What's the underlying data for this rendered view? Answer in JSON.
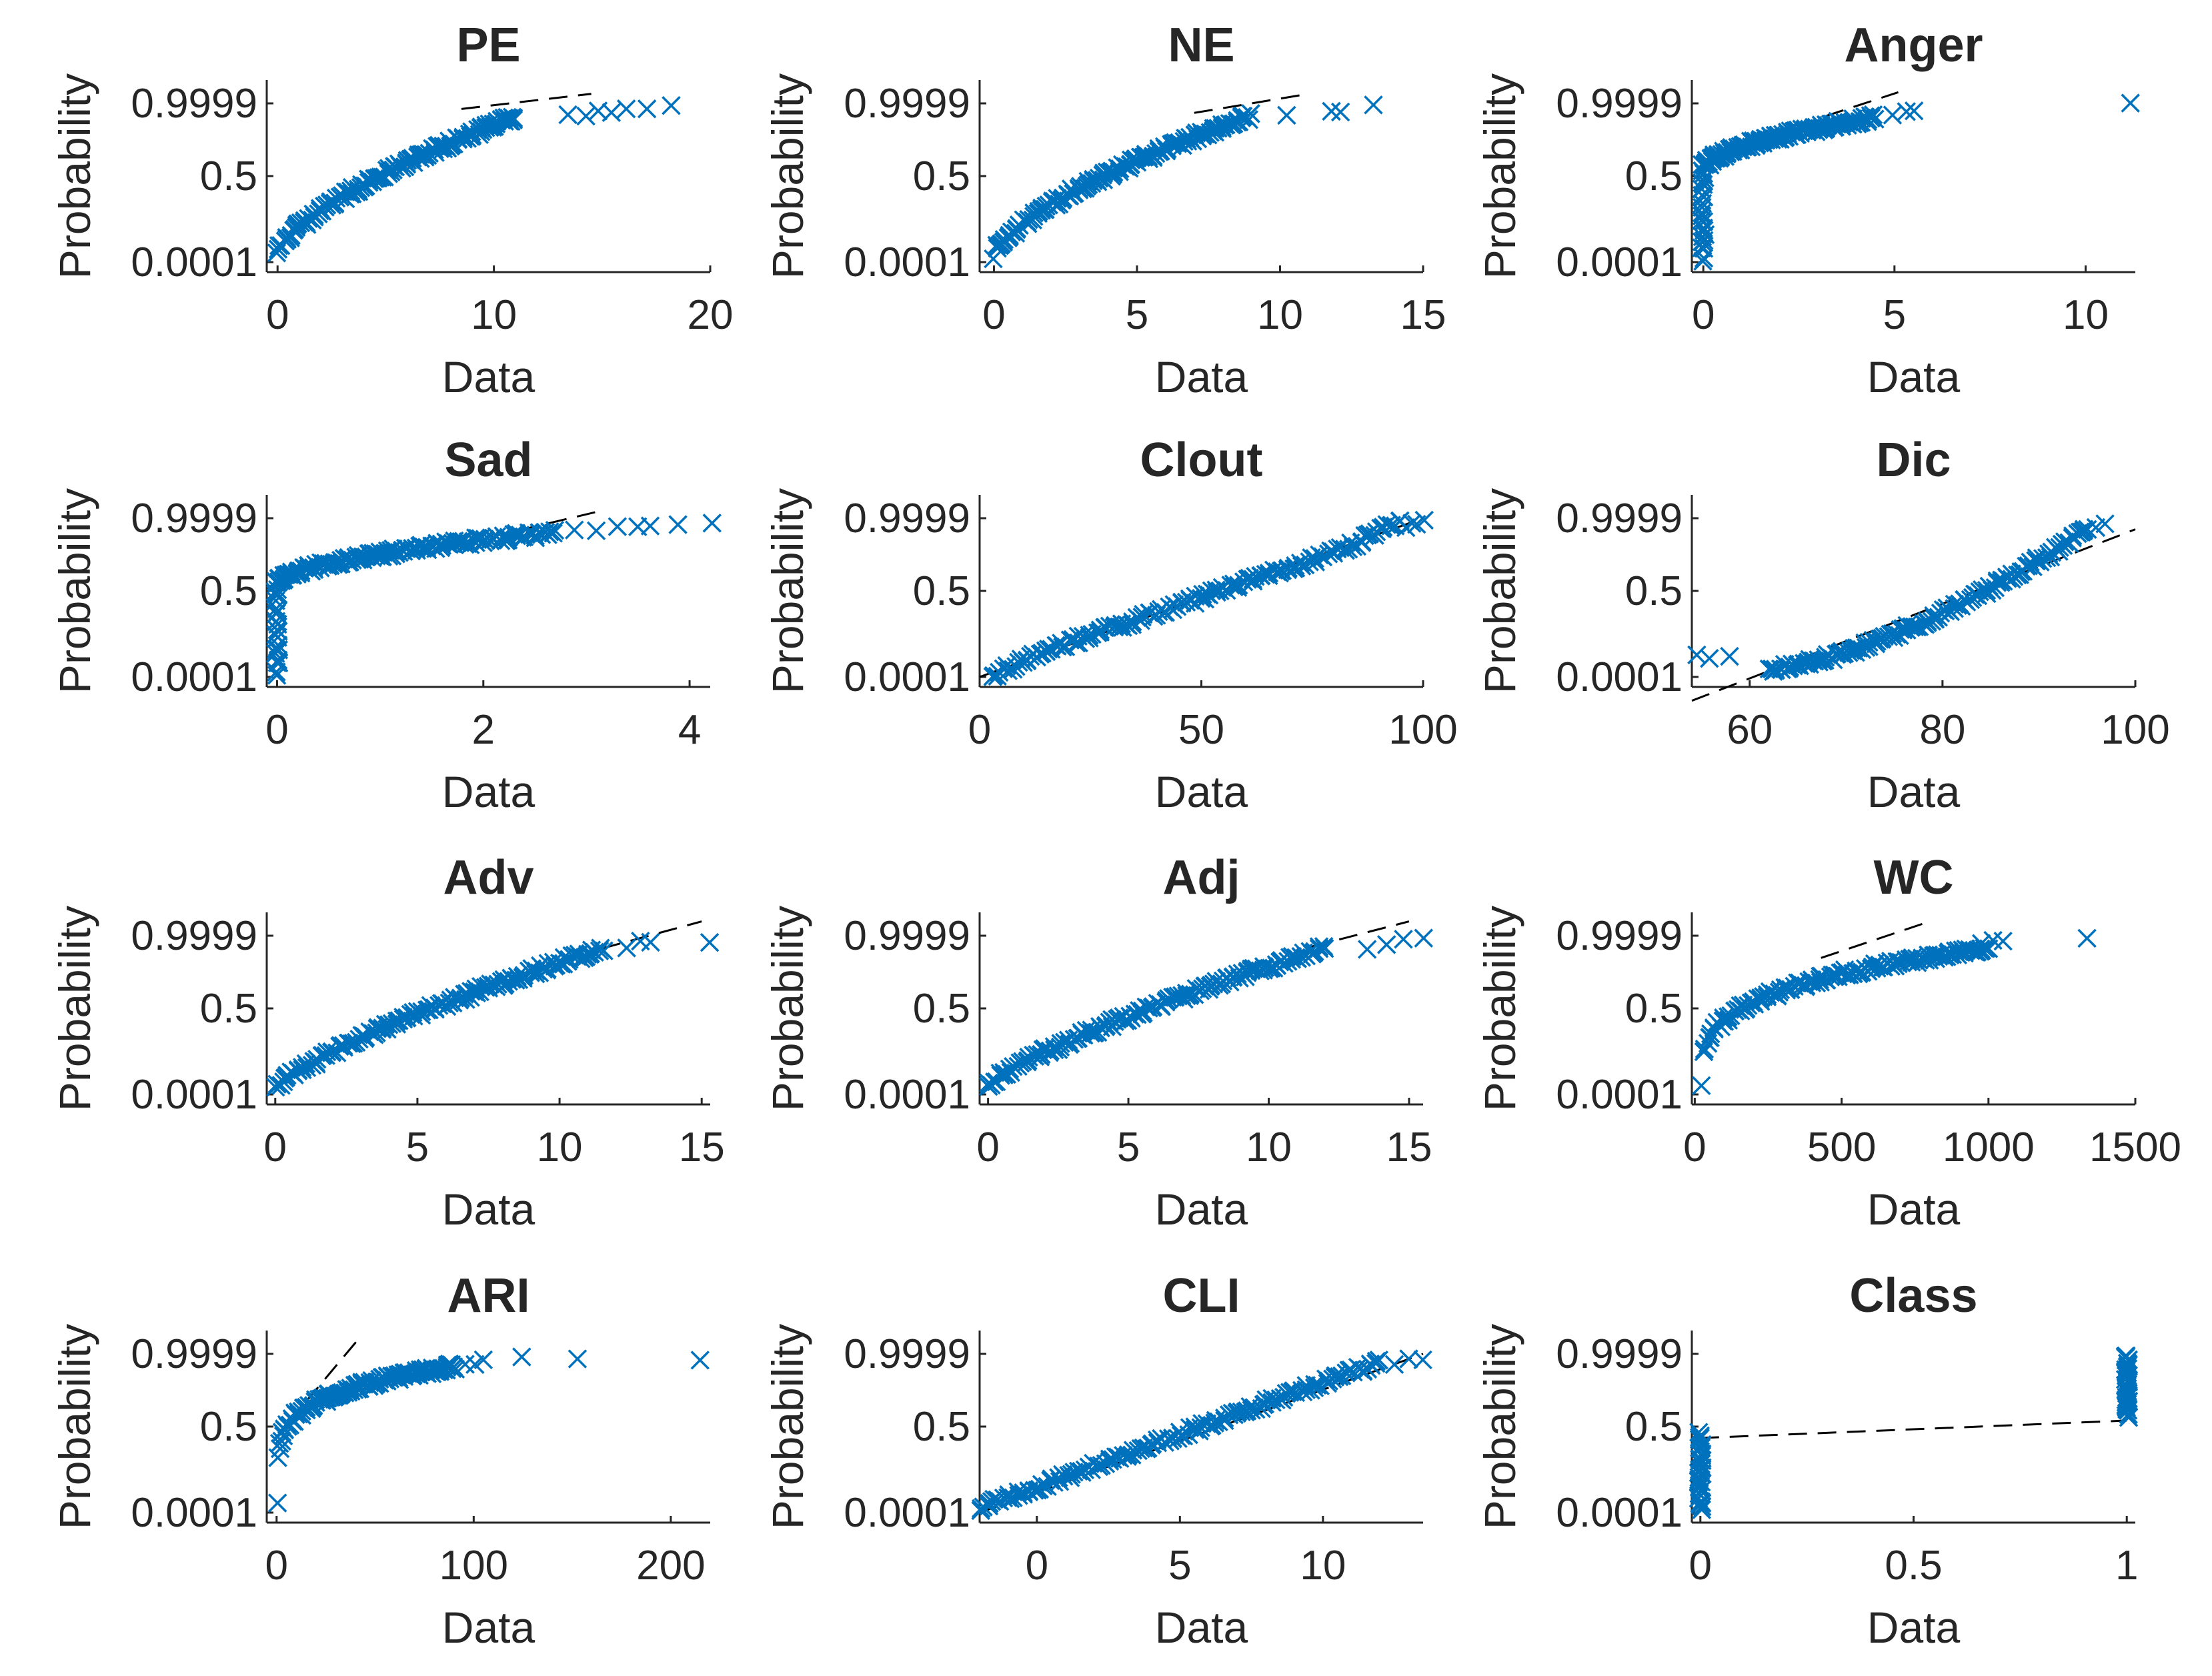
{
  "style": {
    "marker_color": "#0072BD",
    "ref_line_color": "#000000",
    "axis_color": "#262626"
  },
  "chart_data": [
    {
      "type": "scatter",
      "title": "PE",
      "xlabel": "Data",
      "ylabel": "Probability",
      "xlim": [
        -0.5,
        20
      ],
      "xticks": [
        0,
        10,
        20
      ],
      "yticks": [
        0.0001,
        0.5,
        0.9999
      ],
      "ytick_labels": [
        "0.0001",
        "0.5",
        "0.9999"
      ],
      "shape": "concave",
      "x_start": 0,
      "bend": 1.5,
      "x_knee": 11,
      "x_end": 18,
      "tail": [
        13.5,
        14.2,
        14.8,
        15.4,
        16.1,
        17.0,
        18.2
      ],
      "outliers": [],
      "ref_line": [
        [
          8.5,
          0.965
        ],
        [
          14.5,
          1.06
        ]
      ]
    },
    {
      "type": "scatter",
      "title": "NE",
      "xlabel": "Data",
      "ylabel": "Probability",
      "xlim": [
        -0.5,
        15
      ],
      "xticks": [
        0,
        5,
        10,
        15
      ],
      "yticks": [
        0.0001,
        0.5,
        0.9999
      ],
      "ytick_labels": [
        "0.0001",
        "0.5",
        "0.9999"
      ],
      "shape": "concave",
      "x_start": 0,
      "bend": 1.5,
      "x_knee": 9,
      "x_end": 13.5,
      "tail": [
        10.2,
        11.8,
        12.1,
        13.2
      ],
      "outliers": [],
      "ref_line": [
        [
          7.0,
          0.94
        ],
        [
          11.0,
          1.06
        ]
      ]
    },
    {
      "type": "scatter",
      "title": "Anger",
      "xlabel": "Data",
      "ylabel": "Probability",
      "xlim": [
        -0.3,
        11.3
      ],
      "xticks": [
        0,
        5,
        10
      ],
      "yticks": [
        0.0001,
        0.5,
        0.9999
      ],
      "ytick_labels": [
        "0.0001",
        "0.5",
        "0.9999"
      ],
      "shape": "jump",
      "x_start": 0,
      "bend": 0.4,
      "x_knee": 4.5,
      "x_end": 5.5,
      "tail": [
        5.0,
        5.3,
        5.5
      ],
      "outliers": [
        [
          11.2,
          0.99
        ]
      ],
      "ref_line": [
        [
          3.2,
          0.92
        ],
        [
          5.1,
          1.07
        ]
      ]
    },
    {
      "type": "scatter",
      "title": "Sad",
      "xlabel": "Data",
      "ylabel": "Probability",
      "xlim": [
        -0.1,
        4.2
      ],
      "xticks": [
        0,
        2,
        4
      ],
      "yticks": [
        0.0001,
        0.5,
        0.9999
      ],
      "ytick_labels": [
        "0.0001",
        "0.5",
        "0.9999"
      ],
      "shape": "jump",
      "x_start": 0,
      "bend": 0.5,
      "x_knee": 2.7,
      "x_end": 4.2,
      "tail": [
        2.9,
        3.1,
        3.3,
        3.5,
        3.6,
        3.9,
        4.2
      ],
      "outliers": [],
      "ref_line": [
        [
          1.8,
          0.84
        ],
        [
          3.1,
          1.04
        ]
      ]
    },
    {
      "type": "scatter",
      "title": "Clout",
      "xlabel": "Data",
      "ylabel": "Probability",
      "xlim": [
        0,
        100
      ],
      "xticks": [
        0,
        50,
        100
      ],
      "yticks": [
        0.0001,
        0.5,
        0.9999
      ],
      "ytick_labels": [
        "0.0001",
        "0.5",
        "0.9999"
      ],
      "shape": "scurve",
      "x_start": 3,
      "bend": 1.2,
      "x_knee": 95,
      "x_end": 100,
      "tail": [
        96,
        97.5,
        98.5,
        100
      ],
      "outliers": [],
      "ref_line": [
        [
          0,
          0.0
        ],
        [
          100,
          1.0
        ]
      ]
    },
    {
      "type": "scatter",
      "title": "Dic",
      "xlabel": "Data",
      "ylabel": "Probability",
      "xlim": [
        54,
        100
      ],
      "xticks": [
        60,
        80,
        100
      ],
      "yticks": [
        0.0001,
        0.5,
        0.9999
      ],
      "ytick_labels": [
        "0.0001",
        "0.5",
        "0.9999"
      ],
      "shape": "convex",
      "x_start": 62,
      "bend": 1.5,
      "x_knee": 95,
      "x_end": 97,
      "tail": [
        96,
        97
      ],
      "outliers": [
        [
          54.5,
          0.12
        ],
        [
          56,
          0.12
        ],
        [
          58,
          0.13
        ]
      ],
      "ref_line": [
        [
          54,
          -0.15
        ],
        [
          100,
          0.93
        ]
      ]
    },
    {
      "type": "scatter",
      "title": "Adv",
      "xlabel": "Data",
      "ylabel": "Probability",
      "xlim": [
        -0.3,
        15.3
      ],
      "xticks": [
        0,
        5,
        10,
        15
      ],
      "yticks": [
        0.0001,
        0.5,
        0.9999
      ],
      "ytick_labels": [
        "0.0001",
        "0.5",
        "0.9999"
      ],
      "shape": "concave",
      "x_start": 0,
      "bend": 1.3,
      "x_knee": 11.5,
      "x_end": 13.3,
      "tail": [
        12.3,
        12.8,
        13.2,
        15.3
      ],
      "outliers": [],
      "ref_line": [
        [
          11.5,
          0.92
        ],
        [
          15.0,
          1.09
        ]
      ]
    },
    {
      "type": "scatter",
      "title": "Adj",
      "xlabel": "Data",
      "ylabel": "Probability",
      "xlim": [
        -0.3,
        15.5
      ],
      "xticks": [
        0,
        5,
        10,
        15
      ],
      "yticks": [
        0.0001,
        0.5,
        0.9999
      ],
      "ytick_labels": [
        "0.0001",
        "0.5",
        "0.9999"
      ],
      "shape": "concave",
      "x_start": 0,
      "bend": 1.3,
      "x_knee": 12,
      "x_end": 15.5,
      "tail": [
        13.5,
        14.2,
        14.8,
        15.5
      ],
      "outliers": [],
      "ref_line": [
        [
          11.5,
          0.93
        ],
        [
          15.0,
          1.09
        ]
      ]
    },
    {
      "type": "scatter",
      "title": "WC",
      "xlabel": "Data",
      "ylabel": "Probability",
      "xlim": [
        -10,
        1500
      ],
      "xticks": [
        0,
        500,
        1000,
        1500
      ],
      "yticks": [
        0.0001,
        0.5,
        0.9999
      ],
      "ytick_labels": [
        "0.0001",
        "0.5",
        "0.9999"
      ],
      "shape": "concave",
      "x_start": 20,
      "bend": 3.5,
      "x_knee": 1000,
      "x_end": 1050,
      "tail": [
        980,
        1020,
        1050
      ],
      "outliers": [
        [
          1330,
          0.99
        ]
      ],
      "ref_line": [
        [
          430,
          0.86
        ],
        [
          800,
          1.09
        ]
      ]
    },
    {
      "type": "scatter",
      "title": "ARI",
      "xlabel": "Data",
      "ylabel": "Probability",
      "xlim": [
        -5,
        220
      ],
      "xticks": [
        0,
        100,
        200
      ],
      "yticks": [
        0.0001,
        0.5,
        0.9999
      ],
      "ytick_labels": [
        "0.0001",
        "0.5",
        "0.9999"
      ],
      "shape": "concave",
      "x_start": 0,
      "bend": 5,
      "x_knee": 90,
      "x_end": 108,
      "tail": [
        95,
        100,
        105,
        125,
        152,
        215
      ],
      "outliers": [],
      "ref_line": [
        [
          15,
          0.7
        ],
        [
          42,
          1.1
        ]
      ]
    },
    {
      "type": "scatter",
      "title": "CLI",
      "xlabel": "Data",
      "ylabel": "Probability",
      "xlim": [
        -2,
        13.5
      ],
      "xticks": [
        0,
        5,
        10
      ],
      "yticks": [
        0.0001,
        0.5,
        0.9999
      ],
      "ytick_labels": [
        "0.0001",
        "0.5",
        "0.9999"
      ],
      "shape": "linear",
      "x_start": -2,
      "bend": 1,
      "x_knee": 12,
      "x_end": 13.5,
      "tail": [
        12.5,
        13,
        13.5
      ],
      "outliers": [],
      "ref_line": [
        [
          -2,
          0.0
        ],
        [
          13.5,
          1.0
        ]
      ]
    },
    {
      "type": "scatter",
      "title": "Class",
      "xlabel": "Data",
      "ylabel": "Probability",
      "xlim": [
        -0.02,
        1.02
      ],
      "xticks": [
        0,
        0.5,
        1
      ],
      "yticks": [
        0.0001,
        0.5,
        0.9999
      ],
      "ytick_labels": [
        "0.0001",
        "0.5",
        "0.9999"
      ],
      "shape": "binary",
      "x_start": 0,
      "bend": 1,
      "x_knee": 1,
      "x_end": 1,
      "tail": [],
      "outliers": [],
      "ref_line": [
        [
          0,
          0.47
        ],
        [
          1,
          0.58
        ]
      ]
    }
  ]
}
